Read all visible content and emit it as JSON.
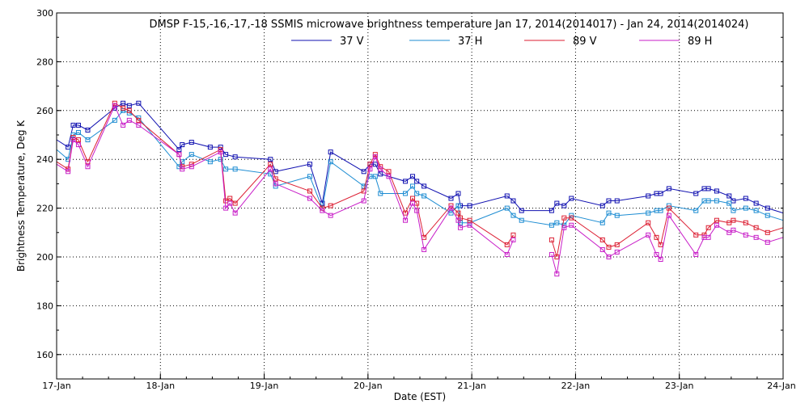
{
  "chart_data": {
    "type": "line",
    "title": "DMSP F-15,-16,-17,-18 SSMIS microwave brightness temperature Jan 17, 2014(2014017) - Jan 24, 2014(2014024)",
    "xlabel": "Date (EST)",
    "ylabel": "Brightness Temperature, Deg K",
    "xlim": [
      0,
      7
    ],
    "ylim": [
      150,
      300
    ],
    "x_ticks": [
      0,
      1,
      2,
      3,
      4,
      5,
      6,
      7
    ],
    "x_tick_labels": [
      "17-Jan",
      "18-Jan",
      "19-Jan",
      "20-Jan",
      "21-Jan",
      "22-Jan",
      "23-Jan",
      "24-Jan"
    ],
    "y_ticks": [
      160,
      180,
      200,
      220,
      240,
      260,
      280,
      300
    ],
    "y_tick_labels": [
      "160",
      "180",
      "200",
      "220",
      "240",
      "260",
      "280",
      "300"
    ],
    "grid": true,
    "legend_position": "top-center",
    "series": [
      {
        "name": "37 V",
        "color": "#1010b0",
        "segments": [
          [
            [
              0,
              248
            ],
            [
              0.11,
              245
            ],
            [
              0.16,
              254
            ],
            [
              0.21,
              254
            ],
            [
              0.3,
              252
            ],
            [
              0.56,
              261
            ],
            [
              0.64,
              263
            ],
            [
              0.7,
              262
            ],
            [
              0.79,
              263
            ],
            [
              1.18,
              244
            ],
            [
              1.21,
              246
            ],
            [
              1.3,
              247
            ],
            [
              1.48,
              245
            ],
            [
              1.58,
              245
            ],
            [
              1.63,
              242
            ],
            [
              1.72,
              241
            ],
            [
              2.06,
              240
            ],
            [
              2.11,
              235
            ],
            [
              2.44,
              238
            ],
            [
              2.56,
              222
            ],
            [
              2.64,
              243
            ],
            [
              2.96,
              235
            ],
            [
              3.02,
              238
            ],
            [
              3.07,
              238
            ],
            [
              3.12,
              234
            ],
            [
              3.36,
              231
            ],
            [
              3.43,
              233
            ],
            [
              3.47,
              231
            ],
            [
              3.54,
              229
            ],
            [
              3.8,
              224
            ],
            [
              3.87,
              226
            ],
            [
              3.89,
              221
            ],
            [
              3.98,
              221
            ],
            [
              4.34,
              225
            ],
            [
              4.4,
              223
            ],
            [
              4.48,
              219
            ],
            [
              4.77,
              219
            ],
            [
              4.82,
              222
            ],
            [
              4.89,
              221
            ],
            [
              4.96,
              224
            ],
            [
              5.26,
              221
            ],
            [
              5.32,
              223
            ],
            [
              5.4,
              223
            ],
            [
              5.7,
              225
            ],
            [
              5.78,
              226
            ],
            [
              5.82,
              226
            ],
            [
              5.9,
              228
            ],
            [
              6.16,
              226
            ],
            [
              6.24,
              228
            ],
            [
              6.28,
              228
            ],
            [
              6.36,
              227
            ],
            [
              6.48,
              225
            ],
            [
              6.52,
              223
            ],
            [
              6.64,
              224
            ],
            [
              6.74,
              222
            ],
            [
              6.85,
              220
            ],
            [
              7,
              218
            ]
          ]
        ]
      },
      {
        "name": "37 H",
        "color": "#1c8cd2",
        "segments": [
          [
            [
              0,
              244
            ],
            [
              0.11,
              240
            ],
            [
              0.16,
              250
            ],
            [
              0.21,
              251
            ],
            [
              0.3,
              248
            ],
            [
              0.56,
              256
            ],
            [
              0.64,
              260
            ],
            [
              0.7,
              259
            ],
            [
              0.79,
              257
            ],
            [
              1.18,
              237
            ],
            [
              1.21,
              239
            ],
            [
              1.3,
              242
            ],
            [
              1.48,
              239
            ],
            [
              1.58,
              240
            ],
            [
              1.63,
              236
            ],
            [
              1.72,
              236
            ],
            [
              2.06,
              234
            ],
            [
              2.11,
              229
            ],
            [
              2.44,
              233
            ],
            [
              2.56,
              220
            ],
            [
              2.64,
              239
            ],
            [
              2.96,
              229
            ],
            [
              3.02,
              233
            ],
            [
              3.07,
              233
            ],
            [
              3.12,
              226
            ],
            [
              3.36,
              226
            ],
            [
              3.43,
              229
            ],
            [
              3.47,
              226
            ],
            [
              3.54,
              225
            ],
            [
              3.8,
              218
            ],
            [
              3.87,
              221
            ],
            [
              3.89,
              214
            ],
            [
              3.98,
              214
            ],
            [
              4.34,
              220
            ],
            [
              4.4,
              217
            ],
            [
              4.48,
              215
            ],
            [
              4.77,
              213
            ],
            [
              4.82,
              214
            ],
            [
              4.89,
              213
            ],
            [
              4.96,
              217
            ],
            [
              5.26,
              214
            ],
            [
              5.32,
              218
            ],
            [
              5.4,
              217
            ],
            [
              5.7,
              218
            ],
            [
              5.78,
              219
            ],
            [
              5.82,
              219
            ],
            [
              5.9,
              221
            ],
            [
              6.16,
              219
            ],
            [
              6.24,
              223
            ],
            [
              6.28,
              223
            ],
            [
              6.36,
              223
            ],
            [
              6.48,
              222
            ],
            [
              6.52,
              219
            ],
            [
              6.64,
              220
            ],
            [
              6.74,
              219
            ],
            [
              6.85,
              217
            ],
            [
              7,
              215
            ]
          ]
        ]
      },
      {
        "name": "89 V",
        "color": "#dc1e32",
        "segments": [
          [
            [
              0,
              239
            ],
            [
              0.11,
              236
            ],
            [
              0.16,
              249
            ],
            [
              0.21,
              248
            ],
            [
              0.3,
              239
            ],
            [
              0.56,
              263
            ],
            [
              0.64,
              261
            ],
            [
              0.7,
              260
            ],
            [
              0.79,
              256
            ],
            [
              1.18,
              242
            ],
            [
              1.21,
              237
            ],
            [
              1.3,
              238
            ],
            [
              1.58,
              244
            ],
            [
              1.63,
              223
            ],
            [
              1.67,
              224
            ],
            [
              1.72,
              222
            ],
            [
              2.06,
              238
            ],
            [
              2.11,
              232
            ],
            [
              2.44,
              227
            ],
            [
              2.56,
              220
            ],
            [
              2.64,
              221
            ],
            [
              2.96,
              227
            ],
            [
              3.02,
              238
            ],
            [
              3.07,
              242
            ],
            [
              3.12,
              237
            ],
            [
              3.2,
              235
            ],
            [
              3.36,
              218
            ],
            [
              3.43,
              224
            ],
            [
              3.47,
              222
            ],
            [
              3.54,
              208
            ],
            [
              3.8,
              221
            ],
            [
              3.87,
              218
            ],
            [
              3.89,
              216
            ],
            [
              3.98,
              215
            ],
            [
              4.34,
              205
            ],
            [
              4.4,
              209
            ]
          ],
          [
            [
              4.77,
              207
            ],
            [
              4.82,
              200
            ],
            [
              4.89,
              216
            ],
            [
              4.96,
              216
            ],
            [
              5.26,
              207
            ],
            [
              5.32,
              204
            ],
            [
              5.4,
              205
            ],
            [
              5.7,
              214
            ],
            [
              5.78,
              208
            ],
            [
              5.82,
              205
            ],
            [
              5.9,
              220
            ],
            [
              6.16,
              209
            ],
            [
              6.24,
              209
            ],
            [
              6.28,
              212
            ],
            [
              6.36,
              215
            ],
            [
              6.48,
              214
            ],
            [
              6.52,
              215
            ],
            [
              6.64,
              214
            ],
            [
              6.74,
              212
            ],
            [
              6.85,
              210
            ],
            [
              7,
              212
            ]
          ]
        ]
      },
      {
        "name": "89 H",
        "color": "#c81ec8",
        "segments": [
          [
            [
              0,
              238
            ],
            [
              0.11,
              235
            ],
            [
              0.16,
              248
            ],
            [
              0.21,
              246
            ],
            [
              0.3,
              237
            ],
            [
              0.56,
              262
            ],
            [
              0.64,
              254
            ],
            [
              0.7,
              256
            ],
            [
              0.79,
              254
            ],
            [
              1.18,
              242
            ],
            [
              1.21,
              236
            ],
            [
              1.3,
              237
            ],
            [
              1.58,
              243
            ],
            [
              1.63,
              220
            ],
            [
              1.67,
              222
            ],
            [
              1.72,
              218
            ],
            [
              2.06,
              236
            ],
            [
              2.11,
              230
            ],
            [
              2.44,
              224
            ],
            [
              2.56,
              219
            ],
            [
              2.64,
              217
            ],
            [
              2.96,
              223
            ],
            [
              3.02,
              236
            ],
            [
              3.07,
              241
            ],
            [
              3.12,
              236
            ],
            [
              3.2,
              233
            ],
            [
              3.36,
              215
            ],
            [
              3.43,
              222
            ],
            [
              3.47,
              219
            ],
            [
              3.54,
              203
            ],
            [
              3.8,
              220
            ],
            [
              3.87,
              215
            ],
            [
              3.89,
              212
            ],
            [
              3.98,
              213
            ],
            [
              4.34,
              201
            ],
            [
              4.4,
              207
            ]
          ],
          [
            [
              4.77,
              201
            ],
            [
              4.82,
              193
            ],
            [
              4.89,
              212
            ],
            [
              4.96,
              213
            ],
            [
              5.26,
              203
            ],
            [
              5.32,
              200
            ],
            [
              5.4,
              202
            ],
            [
              5.7,
              209
            ],
            [
              5.78,
              201
            ],
            [
              5.82,
              199
            ],
            [
              5.9,
              217
            ],
            [
              6.16,
              201
            ],
            [
              6.24,
              208
            ],
            [
              6.28,
              208
            ],
            [
              6.36,
              213
            ],
            [
              6.48,
              210
            ],
            [
              6.52,
              211
            ],
            [
              6.64,
              209
            ],
            [
              6.74,
              208
            ],
            [
              6.85,
              206
            ],
            [
              7,
              208
            ]
          ]
        ]
      }
    ]
  }
}
